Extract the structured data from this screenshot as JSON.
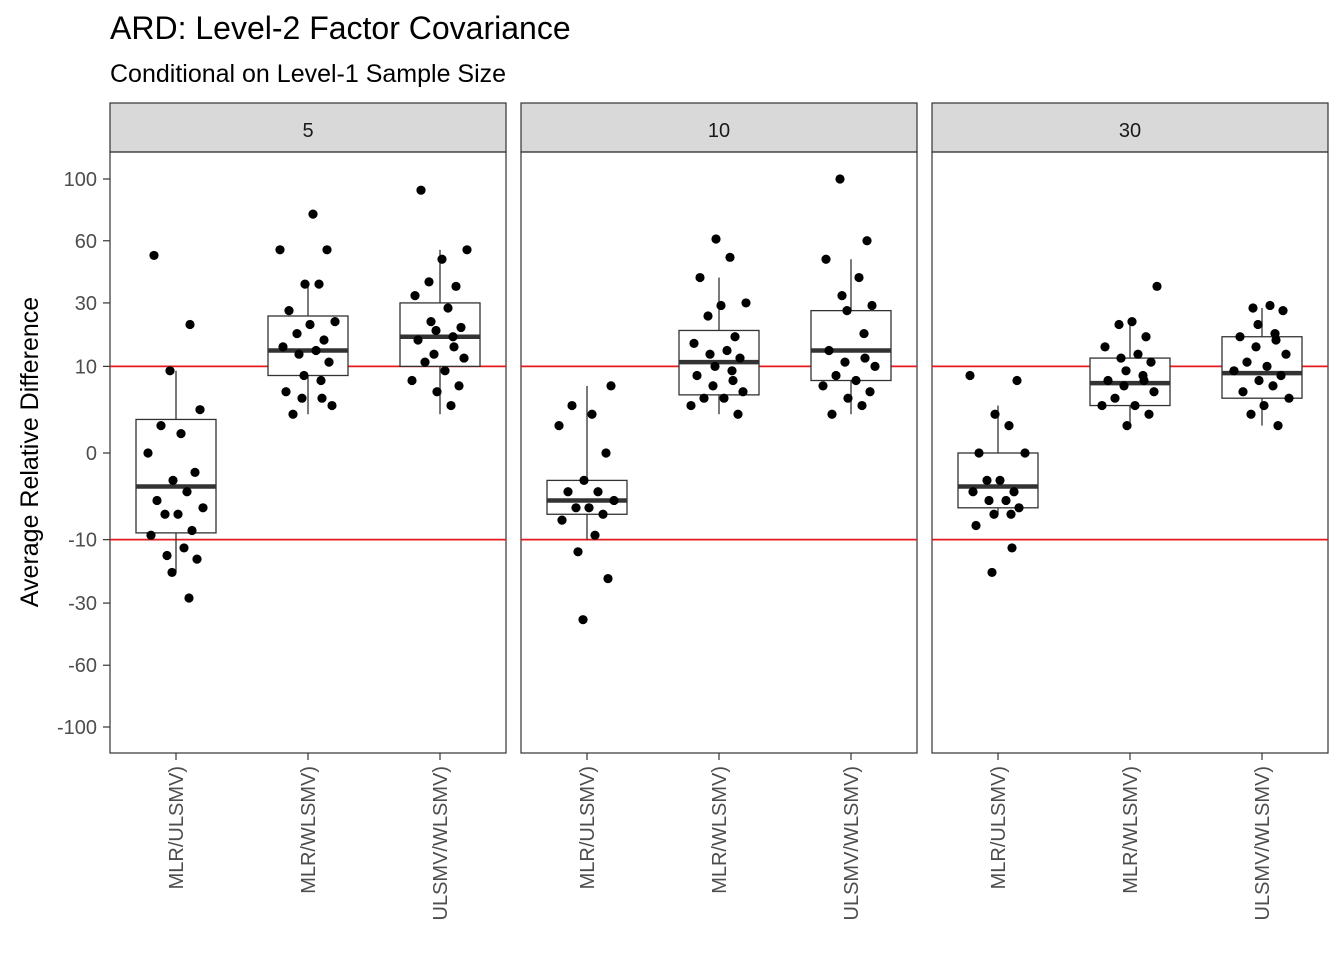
{
  "chart_data": {
    "type": "box",
    "title": "ARD: Level-2 Factor Covariance",
    "subtitle": "Conditional on Level-1 Sample Size",
    "xlabel": "",
    "ylabel": "Average Relative Difference",
    "y_ticks": [
      100,
      60,
      30,
      10,
      0,
      -10,
      -30,
      -60,
      -100
    ],
    "reference_lines": {
      "values": [
        10,
        -10
      ],
      "color": "#e41a1c"
    },
    "categories": [
      "MLR/ULSMV)",
      "MLR/WLSMV)",
      "ULSMV/WLSMV)"
    ],
    "facets": [
      {
        "label": "5",
        "boxes": [
          {
            "category": "MLR/ULSMV)",
            "q1": -8.5,
            "median": -1.5,
            "q3": 1.5,
            "whisker_low": -19,
            "whisker_high": 9,
            "points": [
              52,
              22,
              9,
              2.5,
              1,
              0.5,
              0,
              -0.5,
              -1,
              -2,
              -3,
              -4,
              -5,
              -5,
              -8,
              -9,
              -12,
              -14,
              -15,
              -19,
              -28
            ]
          },
          {
            "category": "MLR/WLSMV)",
            "q1": 8,
            "median": 14,
            "q3": 25,
            "whisker_low": 2,
            "whisker_high": 38,
            "points": [
              76,
              55,
              55,
              38,
              38,
              27,
              23,
              22,
              19,
              17,
              15,
              14,
              13,
              11,
              8,
              7,
              5,
              4,
              4,
              3,
              2
            ]
          },
          {
            "category": "ULSMV/WLSMV)",
            "q1": 10,
            "median": 18,
            "q3": 30,
            "whisker_low": 2,
            "whisker_high": 55,
            "points": [
              92,
              55,
              50,
              39,
              37,
              33,
              28,
              23,
              21,
              20,
              18,
              17,
              15,
              13,
              12,
              11,
              9,
              7,
              6,
              5,
              3
            ]
          }
        ]
      },
      {
        "label": "10",
        "boxes": [
          {
            "category": "MLR/ULSMV)",
            "q1": -5,
            "median": -3,
            "q3": -1,
            "whisker_low": -10,
            "whisker_high": 6,
            "points": [
              6,
              3,
              2,
              1,
              0,
              -1,
              -2,
              -2,
              -3,
              -4,
              -4,
              -5,
              -6,
              -9,
              -13,
              -21,
              -37
            ]
          },
          {
            "category": "MLR/WLSMV)",
            "q1": 4.5,
            "median": 11,
            "q3": 20,
            "whisker_low": 2,
            "whisker_high": 41,
            "points": [
              61,
              51,
              41,
              30,
              29,
              25,
              18,
              16,
              14,
              13,
              12,
              10,
              9,
              8,
              7,
              6,
              5,
              4,
              4,
              3,
              2
            ]
          },
          {
            "category": "ULSMV/WLSMV)",
            "q1": 7,
            "median": 14,
            "q3": 27,
            "whisker_low": 2,
            "whisker_high": 50,
            "points": [
              100,
              60,
              50,
              41,
              33,
              29,
              27,
              19,
              14,
              12,
              11,
              10,
              8,
              7,
              6,
              5,
              4,
              3,
              2
            ]
          }
        ]
      },
      {
        "label": "30",
        "boxes": [
          {
            "category": "MLR/ULSMV)",
            "q1": -4,
            "median": -1.5,
            "q3": 0,
            "whisker_low": -5,
            "whisker_high": 3,
            "points": [
              8,
              7,
              2,
              1,
              0,
              0,
              -1,
              -1,
              -2,
              -2,
              -3,
              -3,
              -4,
              -5,
              -5,
              -7,
              -12,
              -19
            ]
          },
          {
            "category": "MLR/WLSMV)",
            "q1": 3,
            "median": 6.5,
            "q3": 12,
            "whisker_low": 1,
            "whisker_high": 22,
            "points": [
              37,
              23,
              22,
              18,
              15,
              13,
              12,
              11,
              9,
              8,
              7,
              7,
              6,
              5,
              4,
              3,
              3,
              2,
              1
            ]
          },
          {
            "category": "ULSMV/WLSMV)",
            "q1": 4,
            "median": 8.5,
            "q3": 18,
            "whisker_low": 1,
            "whisker_high": 28,
            "points": [
              29,
              28,
              27,
              22,
              19,
              18,
              17,
              15,
              13,
              11,
              10,
              9,
              8,
              7,
              6,
              5,
              4,
              3,
              2,
              1
            ]
          }
        ]
      }
    ]
  }
}
